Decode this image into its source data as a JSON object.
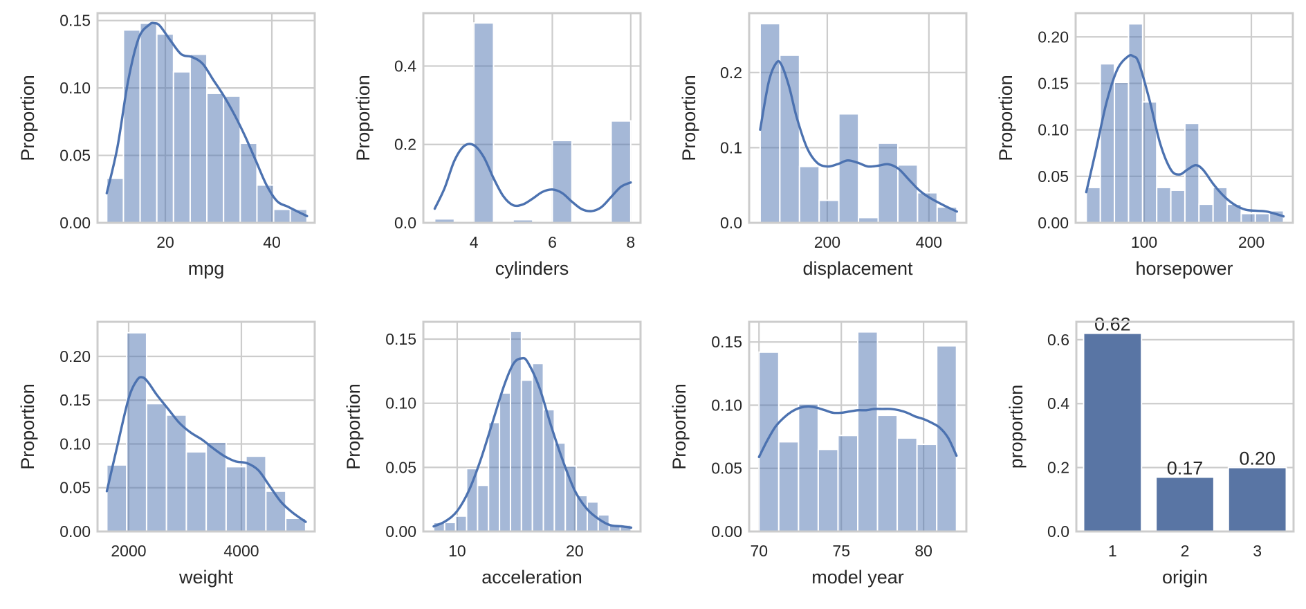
{
  "figure": {
    "colors": {
      "bar": "#4c72b0",
      "bar_alpha": 0.5,
      "kde": "#4c72b0",
      "count_bar": "#5975a4",
      "grid": "#cccccc",
      "text": "#262626"
    }
  },
  "chart_data": [
    {
      "id": "mpg",
      "type": "bar",
      "title": "",
      "xlabel": "mpg",
      "ylabel": "Proportion",
      "xlim": [
        7.27,
        48.05
      ],
      "ylim": [
        0,
        0.1555
      ],
      "xticks": [
        20,
        40
      ],
      "xtick_labels": [
        "20",
        "40"
      ],
      "yticks": [
        0,
        0.05,
        0.1,
        0.15
      ],
      "ytick_labels": [
        "0.00",
        "0.05",
        "0.10",
        "0.15"
      ],
      "bin_start": 9.0,
      "bin_end": 46.6,
      "values": [
        0.033,
        0.143,
        0.148,
        0.14,
        0.112,
        0.125,
        0.096,
        0.094,
        0.059,
        0.028,
        0.01,
        0.01
      ],
      "kde": {
        "x": [
          9.0,
          11.0,
          13.0,
          15.0,
          17.0,
          18.0,
          19.0,
          21.0,
          23.0,
          25.0,
          27.0,
          29.0,
          31.0,
          33.0,
          35.0,
          37.0,
          39.0,
          41.0,
          43.0,
          45.0,
          46.6
        ],
        "y": [
          0.022,
          0.056,
          0.105,
          0.137,
          0.147,
          0.148,
          0.146,
          0.135,
          0.125,
          0.123,
          0.118,
          0.106,
          0.094,
          0.08,
          0.064,
          0.046,
          0.028,
          0.016,
          0.012,
          0.008,
          0.005
        ]
      }
    },
    {
      "id": "cylinders",
      "type": "bar",
      "title": "",
      "xlabel": "cylinders",
      "ylabel": "Proportion",
      "xlim": [
        2.71,
        8.25
      ],
      "ylim": [
        0,
        0.535
      ],
      "xticks": [
        4,
        6,
        8
      ],
      "xtick_labels": [
        "4",
        "6",
        "8"
      ],
      "yticks": [
        0,
        0.2,
        0.4
      ],
      "ytick_labels": [
        "0.0",
        "0.2",
        "0.4"
      ],
      "bin_start": 3.0,
      "bin_end": 8.0,
      "values": [
        0.01,
        0.0,
        0.51,
        0.0,
        0.008,
        0.0,
        0.21,
        0.0,
        0.0,
        0.26
      ],
      "kde": {
        "x": [
          3.0,
          3.25,
          3.5,
          3.75,
          4.0,
          4.25,
          4.5,
          4.75,
          5.0,
          5.25,
          5.5,
          5.75,
          6.0,
          6.25,
          6.5,
          6.75,
          7.0,
          7.25,
          7.5,
          7.75,
          8.0
        ],
        "y": [
          0.036,
          0.088,
          0.158,
          0.196,
          0.198,
          0.168,
          0.114,
          0.068,
          0.045,
          0.047,
          0.062,
          0.079,
          0.085,
          0.076,
          0.054,
          0.035,
          0.03,
          0.04,
          0.066,
          0.092,
          0.103
        ]
      }
    },
    {
      "id": "displacement",
      "type": "bar",
      "title": "",
      "xlabel": "displacement",
      "ylabel": "Proportion",
      "xlim": [
        46.3,
        473.7
      ],
      "ylim": [
        0,
        0.279
      ],
      "xticks": [
        200,
        400
      ],
      "xtick_labels": [
        "200",
        "400"
      ],
      "yticks": [
        0,
        0.1,
        0.2
      ],
      "ytick_labels": [
        "0.0",
        "0.1",
        "0.2"
      ],
      "bin_start": 68.0,
      "bin_end": 455.0,
      "values": [
        0.265,
        0.223,
        0.075,
        0.03,
        0.145,
        0.007,
        0.106,
        0.077,
        0.04,
        0.021
      ],
      "kde": {
        "x": [
          68,
          85,
          100,
          110,
          125,
          140,
          160,
          180,
          200,
          220,
          240,
          260,
          280,
          300,
          320,
          340,
          360,
          380,
          400,
          430,
          455
        ],
        "y": [
          0.124,
          0.188,
          0.213,
          0.21,
          0.181,
          0.14,
          0.1,
          0.08,
          0.075,
          0.078,
          0.083,
          0.08,
          0.075,
          0.076,
          0.078,
          0.072,
          0.058,
          0.044,
          0.034,
          0.023,
          0.015
        ]
      }
    },
    {
      "id": "horsepower",
      "type": "bar",
      "title": "",
      "xlabel": "horsepower",
      "ylabel": "Proportion",
      "xlim": [
        36.1,
        238.7
      ],
      "ylim": [
        0,
        0.2255
      ],
      "xticks": [
        100,
        200
      ],
      "xtick_labels": [
        "100",
        "200"
      ],
      "yticks": [
        0,
        0.05,
        0.1,
        0.15,
        0.2
      ],
      "ytick_labels": [
        "0.00",
        "0.05",
        "0.10",
        "0.15",
        "0.20"
      ],
      "bin_start": 46.0,
      "bin_end": 230.0,
      "values": [
        0.038,
        0.171,
        0.151,
        0.214,
        0.13,
        0.038,
        0.035,
        0.107,
        0.02,
        0.038,
        0.02,
        0.01,
        0.01,
        0.013
      ],
      "kde": {
        "x": [
          46,
          55,
          65,
          75,
          85,
          90,
          95,
          105,
          115,
          125,
          133,
          140,
          148,
          155,
          165,
          175,
          185,
          195,
          205,
          215,
          230
        ],
        "y": [
          0.033,
          0.078,
          0.13,
          0.165,
          0.179,
          0.179,
          0.172,
          0.132,
          0.085,
          0.057,
          0.052,
          0.057,
          0.062,
          0.057,
          0.041,
          0.028,
          0.019,
          0.014,
          0.013,
          0.012,
          0.007
        ]
      }
    },
    {
      "id": "weight",
      "type": "bar",
      "title": "",
      "xlabel": "weight",
      "ylabel": "Proportion",
      "xlim": [
        1448,
        5301
      ],
      "ylim": [
        0,
        0.2395
      ],
      "xticks": [
        2000,
        4000
      ],
      "xtick_labels": [
        "2000",
        "4000"
      ],
      "yticks": [
        0,
        0.05,
        0.1,
        0.15,
        0.2
      ],
      "ytick_labels": [
        "0.00",
        "0.05",
        "0.10",
        "0.15",
        "0.20"
      ],
      "bin_start": 1613,
      "bin_end": 5140,
      "values": [
        0.076,
        0.227,
        0.146,
        0.133,
        0.091,
        0.102,
        0.074,
        0.086,
        0.046,
        0.015
      ],
      "kde": {
        "x": [
          1613,
          1800,
          2000,
          2150,
          2250,
          2350,
          2500,
          2700,
          2900,
          3100,
          3300,
          3500,
          3700,
          3900,
          4100,
          4300,
          4500,
          4700,
          4900,
          5140
        ],
        "y": [
          0.046,
          0.098,
          0.152,
          0.173,
          0.176,
          0.17,
          0.156,
          0.14,
          0.124,
          0.113,
          0.105,
          0.095,
          0.086,
          0.08,
          0.078,
          0.07,
          0.052,
          0.034,
          0.022,
          0.011
        ]
      }
    },
    {
      "id": "acceleration",
      "type": "bar",
      "title": "",
      "xlabel": "acceleration",
      "ylabel": "Proportion",
      "xlim": [
        7.12,
        25.6
      ],
      "ylim": [
        0,
        0.1635
      ],
      "xticks": [
        10,
        20
      ],
      "xtick_labels": [
        "10",
        "20"
      ],
      "yticks": [
        0,
        0.05,
        0.1,
        0.15
      ],
      "ytick_labels": [
        "0.00",
        "0.05",
        "0.10",
        "0.15"
      ],
      "bin_start": 8.0,
      "bin_end": 24.8,
      "values": [
        0.007,
        0.007,
        0.012,
        0.049,
        0.036,
        0.085,
        0.108,
        0.156,
        0.118,
        0.131,
        0.095,
        0.069,
        0.051,
        0.028,
        0.023,
        0.013,
        0.005,
        0.005
      ],
      "kde": {
        "x": [
          8.0,
          9.0,
          10.0,
          11.0,
          12.0,
          13.0,
          14.0,
          14.8,
          15.5,
          16.0,
          17.0,
          18.0,
          19.0,
          20.0,
          21.0,
          22.0,
          23.0,
          24.0,
          24.8
        ],
        "y": [
          0.004,
          0.008,
          0.016,
          0.032,
          0.056,
          0.085,
          0.114,
          0.131,
          0.135,
          0.132,
          0.112,
          0.082,
          0.055,
          0.032,
          0.018,
          0.01,
          0.005,
          0.004,
          0.003
        ]
      }
    },
    {
      "id": "model_year",
      "type": "bar",
      "title": "",
      "xlabel": "model year",
      "ylabel": "Proportion",
      "xlim": [
        69.4,
        82.6
      ],
      "ylim": [
        0,
        0.166
      ],
      "xticks": [
        70,
        75,
        80
      ],
      "xtick_labels": [
        "70",
        "75",
        "80"
      ],
      "yticks": [
        0,
        0.05,
        0.1,
        0.15
      ],
      "ytick_labels": [
        "0.00",
        "0.05",
        "0.10",
        "0.15"
      ],
      "bin_start": 70.0,
      "bin_end": 82.0,
      "values": [
        0.142,
        0.071,
        0.101,
        0.065,
        0.076,
        0.158,
        0.092,
        0.074,
        0.069,
        0.147
      ],
      "kde": {
        "x": [
          70.0,
          70.5,
          71.0,
          71.5,
          72.0,
          72.5,
          73.0,
          73.5,
          74.0,
          74.5,
          75.0,
          75.5,
          76.0,
          76.5,
          77.0,
          77.5,
          78.0,
          78.5,
          79.0,
          79.5,
          80.0,
          80.5,
          81.0,
          81.5,
          82.0
        ],
        "y": [
          0.059,
          0.072,
          0.083,
          0.09,
          0.095,
          0.098,
          0.099,
          0.098,
          0.096,
          0.094,
          0.094,
          0.095,
          0.096,
          0.096,
          0.097,
          0.097,
          0.097,
          0.096,
          0.094,
          0.091,
          0.089,
          0.086,
          0.082,
          0.074,
          0.06
        ]
      }
    },
    {
      "id": "origin",
      "type": "bar",
      "title": "",
      "xlabel": "origin",
      "ylabel": "proportion",
      "ylim": [
        0,
        0.656
      ],
      "categories": [
        "1",
        "2",
        "3"
      ],
      "values": [
        0.62,
        0.17,
        0.2
      ],
      "data_labels": [
        "0.62",
        "0.17",
        "0.20"
      ],
      "yticks": [
        0,
        0.2,
        0.4,
        0.6
      ],
      "ytick_labels": [
        "0.0",
        "0.2",
        "0.4",
        "0.6"
      ]
    }
  ]
}
